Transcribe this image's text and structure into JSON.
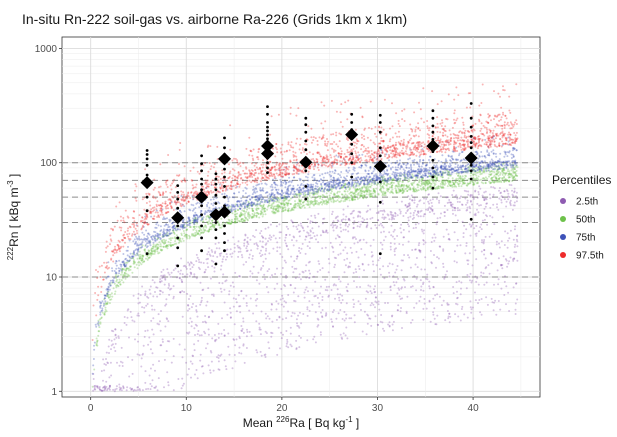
{
  "chart_data": {
    "type": "scatter",
    "title": "In-situ Rn-222 soil-gas vs. airborne Ra-226 (Grids 1km x 1km)",
    "xlabel": {
      "main": "Mean ",
      "sup": "226",
      "rest": "Ra [ Bq kg",
      "sup2": "-1",
      "end": " ]"
    },
    "ylabel": {
      "sup": "222",
      "main": "Rn [ kBq m",
      "sup2": "-3",
      "end": " ]"
    },
    "x_ticks": [
      "0",
      "10",
      "20",
      "30",
      "40"
    ],
    "y_ticks": [
      "1",
      "10",
      "100",
      "1000"
    ],
    "xlim": [
      -3,
      47
    ],
    "ylim_log10": [
      -0.05,
      3.1
    ],
    "y_scale": "log",
    "grid": true,
    "reference_lines_y": [
      10,
      30,
      50,
      70,
      100
    ],
    "legend": {
      "title": "Percentiles",
      "position": "right",
      "items": [
        {
          "label": "2.5th",
          "color": "#8e5bb1"
        },
        {
          "label": "50th",
          "color": "#6dc14a"
        },
        {
          "label": "75th",
          "color": "#3e52b8"
        },
        {
          "label": "97.5th",
          "color": "#ee2b2b"
        }
      ]
    },
    "percentile_bands": [
      {
        "name": "2.5th",
        "color": "#8e5bb1",
        "coef": 0.95,
        "exp": 1.0,
        "spread_below": 0.95,
        "spread_above": 0.15,
        "noise_up": 0.06
      },
      {
        "name": "50th",
        "color": "#6dc14a",
        "coef": 4.0,
        "exp": 0.8,
        "spread_below": 0.08,
        "spread_above": 0.06,
        "noise_up": 0.03
      },
      {
        "name": "75th",
        "color": "#3e52b8",
        "coef": 5.2,
        "exp": 0.8,
        "spread_below": 0.08,
        "spread_above": 0.1,
        "noise_up": 0.12
      },
      {
        "name": "97.5th",
        "color": "#ee2b2b",
        "coef": 9.0,
        "exp": 0.8,
        "spread_below": 0.12,
        "spread_above": 0.18,
        "noise_up": 0.3
      }
    ],
    "measurement_columns": [
      {
        "x": 5.9,
        "y": [
          16,
          38,
          50,
          62,
          78,
          95,
          108,
          118,
          128
        ]
      },
      {
        "x": 9.1,
        "y": [
          12.5,
          18,
          22,
          28,
          32,
          40,
          48,
          55,
          63
        ]
      },
      {
        "x": 11.6,
        "y": [
          17,
          22,
          28,
          35,
          42,
          50,
          58,
          65,
          72,
          85,
          98,
          115
        ]
      },
      {
        "x": 13.1,
        "y": [
          13,
          22,
          26,
          30,
          36,
          44,
          52,
          58,
          65,
          72,
          80
        ]
      },
      {
        "x": 14.0,
        "y": [
          17,
          20,
          24,
          28,
          34,
          42,
          50,
          62,
          75,
          88,
          100,
          118,
          135,
          165
        ]
      },
      {
        "x": 18.5,
        "y": [
          82,
          90,
          100,
          110,
          120,
          130,
          140,
          150,
          162,
          175,
          190,
          205,
          225,
          265,
          310
        ]
      },
      {
        "x": 22.5,
        "y": [
          48,
          62,
          85,
          95,
          110,
          130,
          155,
          185,
          215,
          245
        ]
      },
      {
        "x": 27.3,
        "y": [
          75,
          100,
          120,
          145,
          170,
          195,
          225,
          265
        ]
      },
      {
        "x": 30.3,
        "y": [
          16,
          45,
          68,
          85,
          95,
          115,
          135,
          185,
          225,
          260
        ]
      },
      {
        "x": 35.8,
        "y": [
          60,
          75,
          90,
          105,
          125,
          140,
          160,
          185,
          210,
          245,
          285
        ]
      },
      {
        "x": 39.8,
        "y": [
          32,
          72,
          85,
          95,
          108,
          120,
          135,
          150,
          170,
          205,
          245,
          330
        ]
      }
    ],
    "medians": [
      {
        "x": 5.9,
        "y": 67
      },
      {
        "x": 9.1,
        "y": 33
      },
      {
        "x": 11.6,
        "y": 50
      },
      {
        "x": 13.1,
        "y": 35
      },
      {
        "x": 14.0,
        "y": 37
      },
      {
        "x": 14.0,
        "y": 108
      },
      {
        "x": 18.5,
        "y": 140
      },
      {
        "x": 18.5,
        "y": 120
      },
      {
        "x": 22.5,
        "y": 101
      },
      {
        "x": 27.3,
        "y": 176
      },
      {
        "x": 30.3,
        "y": 93
      },
      {
        "x": 35.8,
        "y": 140
      },
      {
        "x": 39.8,
        "y": 110
      }
    ]
  }
}
